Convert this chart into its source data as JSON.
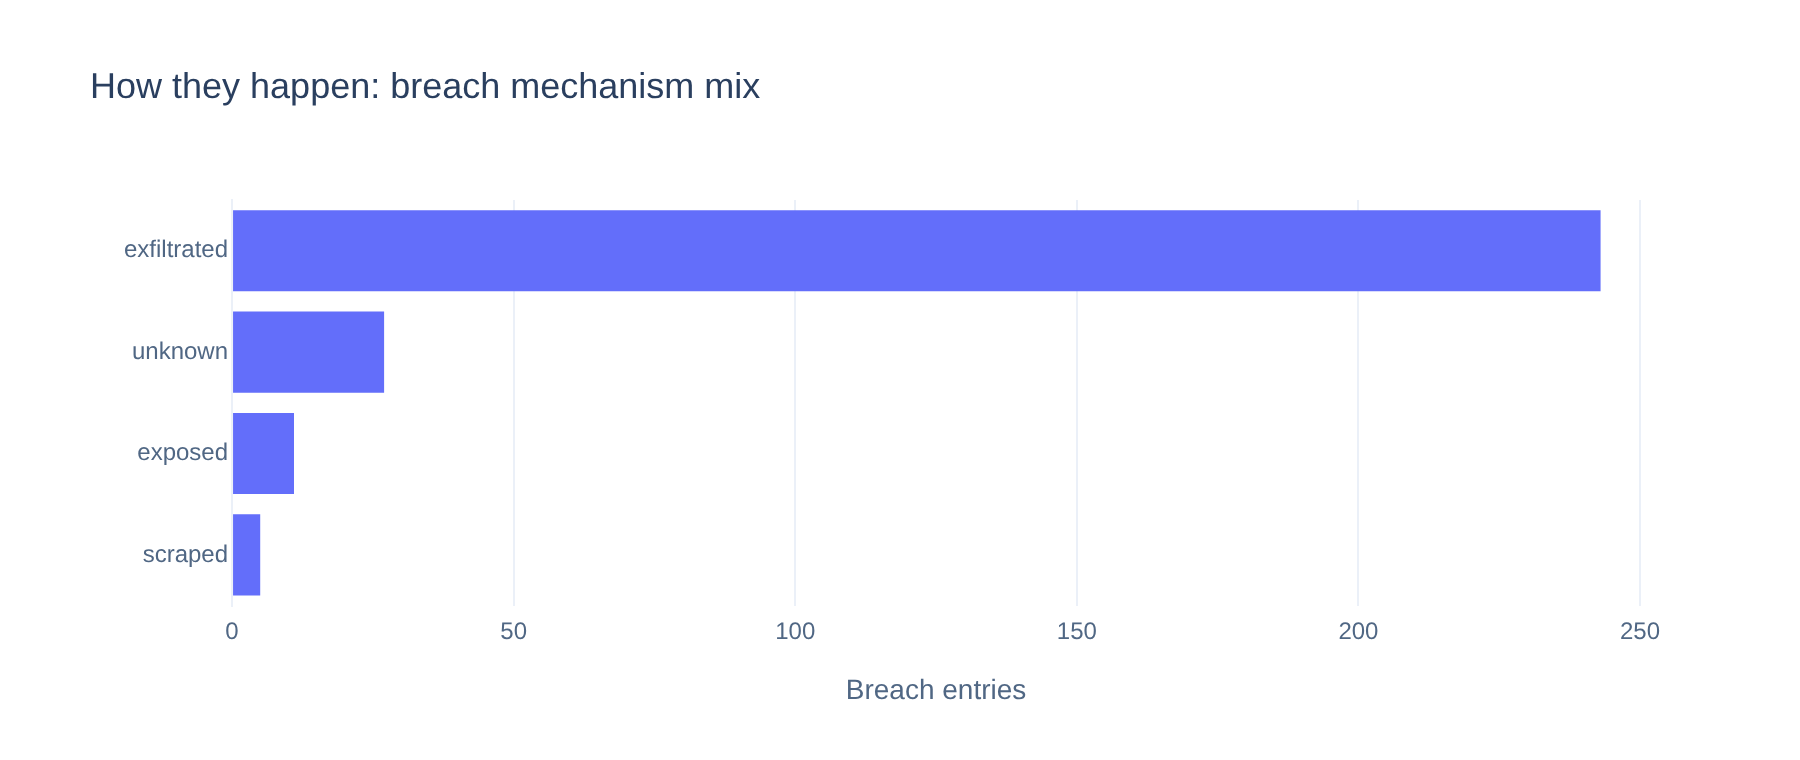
{
  "chart_data": {
    "type": "bar",
    "orientation": "horizontal",
    "title": "How they happen: breach mechanism mix",
    "xlabel": "Breach entries",
    "categories": [
      "exfiltrated",
      "unknown",
      "exposed",
      "scraped"
    ],
    "values": [
      243,
      27,
      11,
      5
    ],
    "color": "#636efa",
    "xlim": [
      0,
      250
    ],
    "xticks": [
      0,
      50,
      100,
      150,
      200,
      250
    ],
    "grid": "x",
    "legend": false
  }
}
